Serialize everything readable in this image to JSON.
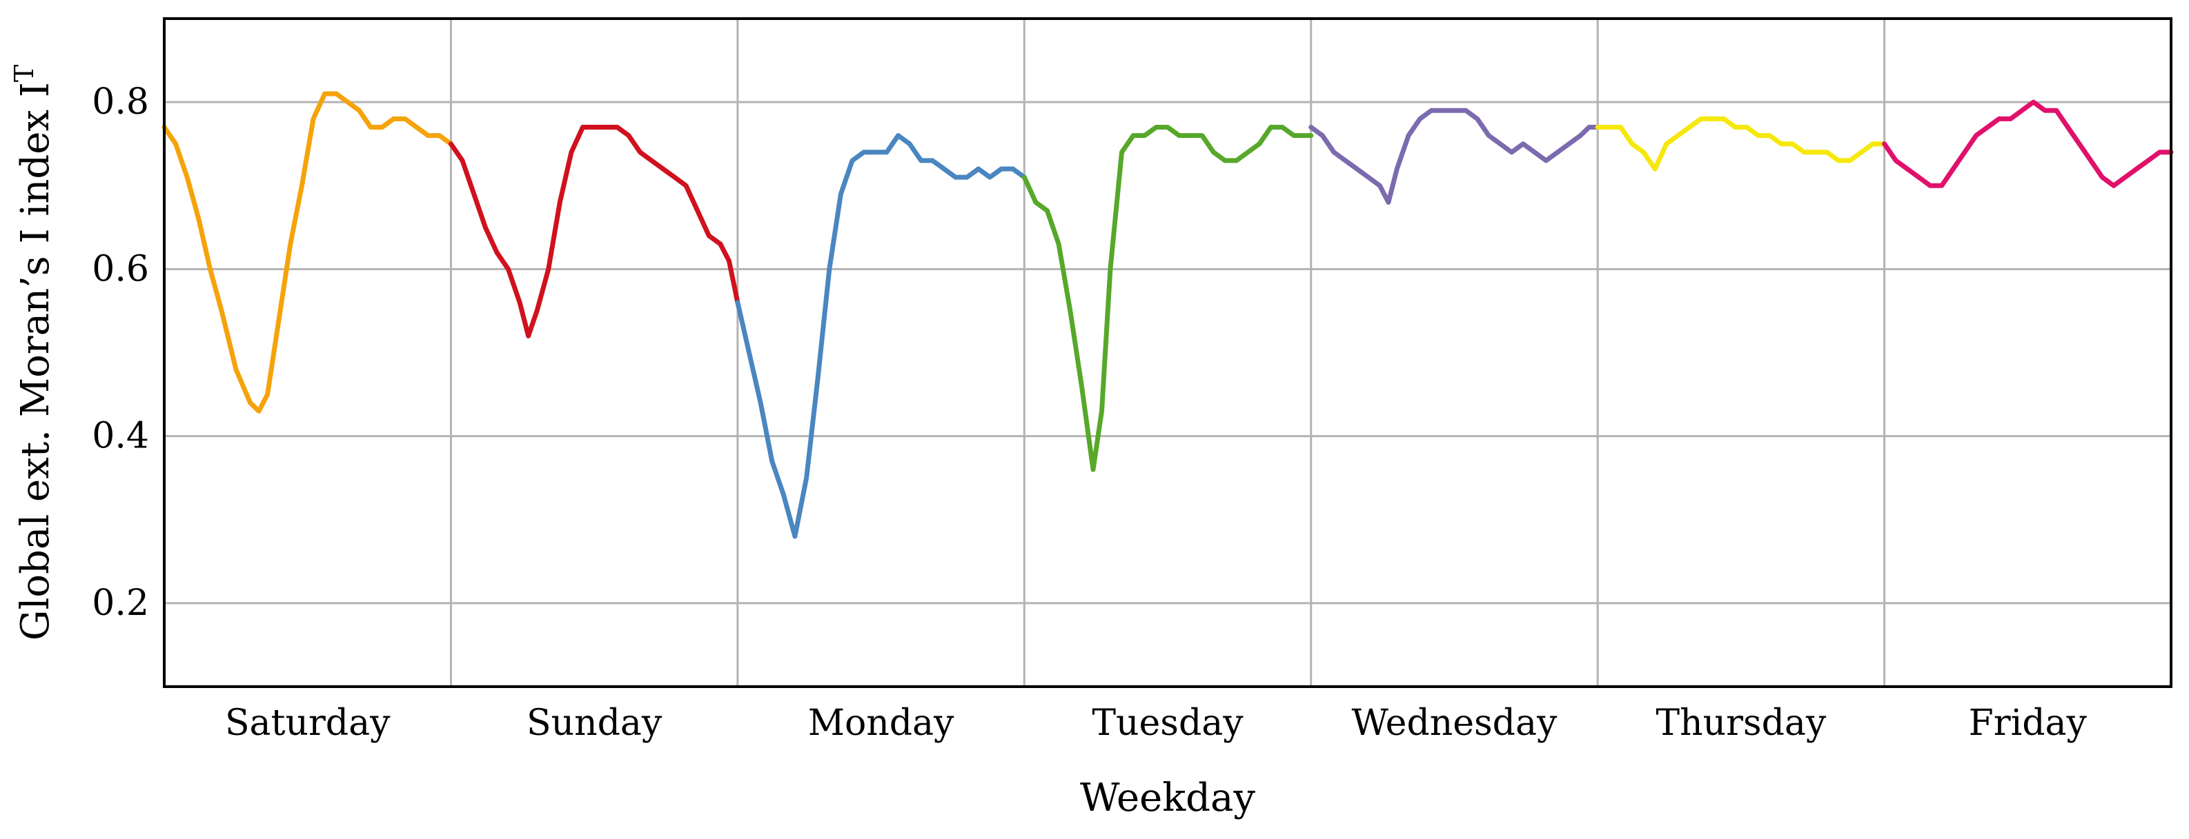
{
  "chart_data": {
    "type": "line",
    "xlabel": "Weekday",
    "ylabel": "Global ext. Moran’s I index I",
    "ylabel_superscript": "T",
    "ylim": [
      0.1,
      0.9
    ],
    "yticks": [
      0.2,
      0.4,
      0.6,
      0.8
    ],
    "ytick_labels": [
      "0.2",
      "0.4",
      "0.6",
      "0.8"
    ],
    "xlim": [
      0,
      7
    ],
    "grid": true,
    "categories": [
      "Saturday",
      "Sunday",
      "Monday",
      "Tuesday",
      "Wednesday",
      "Thursday",
      "Friday"
    ],
    "series": [
      {
        "color": "#f5a30a",
        "x": [
          0.0,
          0.04,
          0.08,
          0.12,
          0.16,
          0.2,
          0.25,
          0.3,
          0.33,
          0.36,
          0.4,
          0.44,
          0.48,
          0.52,
          0.56,
          0.6,
          0.64,
          0.68,
          0.72,
          0.76,
          0.8,
          0.84,
          0.88,
          0.92,
          0.96,
          1.0
        ],
        "y": [
          0.77,
          0.75,
          0.71,
          0.66,
          0.6,
          0.55,
          0.48,
          0.44,
          0.43,
          0.45,
          0.54,
          0.63,
          0.7,
          0.78,
          0.81,
          0.81,
          0.8,
          0.79,
          0.77,
          0.77,
          0.78,
          0.78,
          0.77,
          0.76,
          0.76,
          0.75
        ]
      },
      {
        "color": "#d0111e",
        "x": [
          1.0,
          1.04,
          1.08,
          1.12,
          1.16,
          1.2,
          1.24,
          1.27,
          1.3,
          1.34,
          1.38,
          1.42,
          1.46,
          1.5,
          1.54,
          1.58,
          1.62,
          1.66,
          1.7,
          1.74,
          1.78,
          1.82,
          1.86,
          1.9,
          1.94,
          1.97,
          2.0
        ],
        "y": [
          0.75,
          0.73,
          0.69,
          0.65,
          0.62,
          0.6,
          0.56,
          0.52,
          0.55,
          0.6,
          0.68,
          0.74,
          0.77,
          0.77,
          0.77,
          0.77,
          0.76,
          0.74,
          0.73,
          0.72,
          0.71,
          0.7,
          0.67,
          0.64,
          0.63,
          0.61,
          0.56
        ]
      },
      {
        "color": "#4a86c0",
        "x": [
          2.0,
          2.04,
          2.08,
          2.12,
          2.16,
          2.2,
          2.24,
          2.28,
          2.32,
          2.36,
          2.4,
          2.44,
          2.48,
          2.52,
          2.56,
          2.6,
          2.64,
          2.68,
          2.72,
          2.76,
          2.8,
          2.84,
          2.88,
          2.92,
          2.96,
          3.0
        ],
        "y": [
          0.56,
          0.5,
          0.44,
          0.37,
          0.33,
          0.28,
          0.35,
          0.47,
          0.6,
          0.69,
          0.73,
          0.74,
          0.74,
          0.74,
          0.76,
          0.75,
          0.73,
          0.73,
          0.72,
          0.71,
          0.71,
          0.72,
          0.71,
          0.72,
          0.72,
          0.71
        ]
      },
      {
        "color": "#57a82a",
        "x": [
          3.0,
          3.04,
          3.08,
          3.12,
          3.16,
          3.2,
          3.24,
          3.27,
          3.3,
          3.34,
          3.38,
          3.42,
          3.46,
          3.5,
          3.54,
          3.58,
          3.62,
          3.66,
          3.7,
          3.74,
          3.78,
          3.82,
          3.86,
          3.9,
          3.94,
          3.97,
          4.0
        ],
        "y": [
          0.71,
          0.68,
          0.67,
          0.63,
          0.55,
          0.46,
          0.36,
          0.43,
          0.6,
          0.74,
          0.76,
          0.76,
          0.77,
          0.77,
          0.76,
          0.76,
          0.76,
          0.74,
          0.73,
          0.73,
          0.74,
          0.75,
          0.77,
          0.77,
          0.76,
          0.76,
          0.76
        ]
      },
      {
        "color": "#7b6bae",
        "x": [
          4.0,
          4.04,
          4.08,
          4.12,
          4.16,
          4.2,
          4.24,
          4.27,
          4.3,
          4.34,
          4.38,
          4.42,
          4.46,
          4.5,
          4.54,
          4.58,
          4.62,
          4.66,
          4.7,
          4.74,
          4.78,
          4.82,
          4.86,
          4.9,
          4.94,
          4.97,
          5.0
        ],
        "y": [
          0.77,
          0.76,
          0.74,
          0.73,
          0.72,
          0.71,
          0.7,
          0.68,
          0.72,
          0.76,
          0.78,
          0.79,
          0.79,
          0.79,
          0.79,
          0.78,
          0.76,
          0.75,
          0.74,
          0.75,
          0.74,
          0.73,
          0.74,
          0.75,
          0.76,
          0.77,
          0.77
        ]
      },
      {
        "color": "#f6e80a",
        "x": [
          5.0,
          5.04,
          5.08,
          5.12,
          5.16,
          5.2,
          5.24,
          5.28,
          5.32,
          5.36,
          5.4,
          5.44,
          5.48,
          5.52,
          5.56,
          5.6,
          5.64,
          5.68,
          5.72,
          5.76,
          5.8,
          5.84,
          5.88,
          5.92,
          5.96,
          6.0
        ],
        "y": [
          0.77,
          0.77,
          0.77,
          0.75,
          0.74,
          0.72,
          0.75,
          0.76,
          0.77,
          0.78,
          0.78,
          0.78,
          0.77,
          0.77,
          0.76,
          0.76,
          0.75,
          0.75,
          0.74,
          0.74,
          0.74,
          0.73,
          0.73,
          0.74,
          0.75,
          0.75
        ]
      },
      {
        "color": "#e0116a",
        "x": [
          6.0,
          6.04,
          6.08,
          6.12,
          6.16,
          6.2,
          6.24,
          6.28,
          6.32,
          6.36,
          6.4,
          6.44,
          6.48,
          6.52,
          6.56,
          6.6,
          6.64,
          6.68,
          6.72,
          6.76,
          6.8,
          6.84,
          6.88,
          6.92,
          6.96,
          7.0
        ],
        "y": [
          0.75,
          0.73,
          0.72,
          0.71,
          0.7,
          0.7,
          0.72,
          0.74,
          0.76,
          0.77,
          0.78,
          0.78,
          0.79,
          0.8,
          0.79,
          0.79,
          0.77,
          0.75,
          0.73,
          0.71,
          0.7,
          0.71,
          0.72,
          0.73,
          0.74,
          0.74
        ]
      }
    ]
  }
}
